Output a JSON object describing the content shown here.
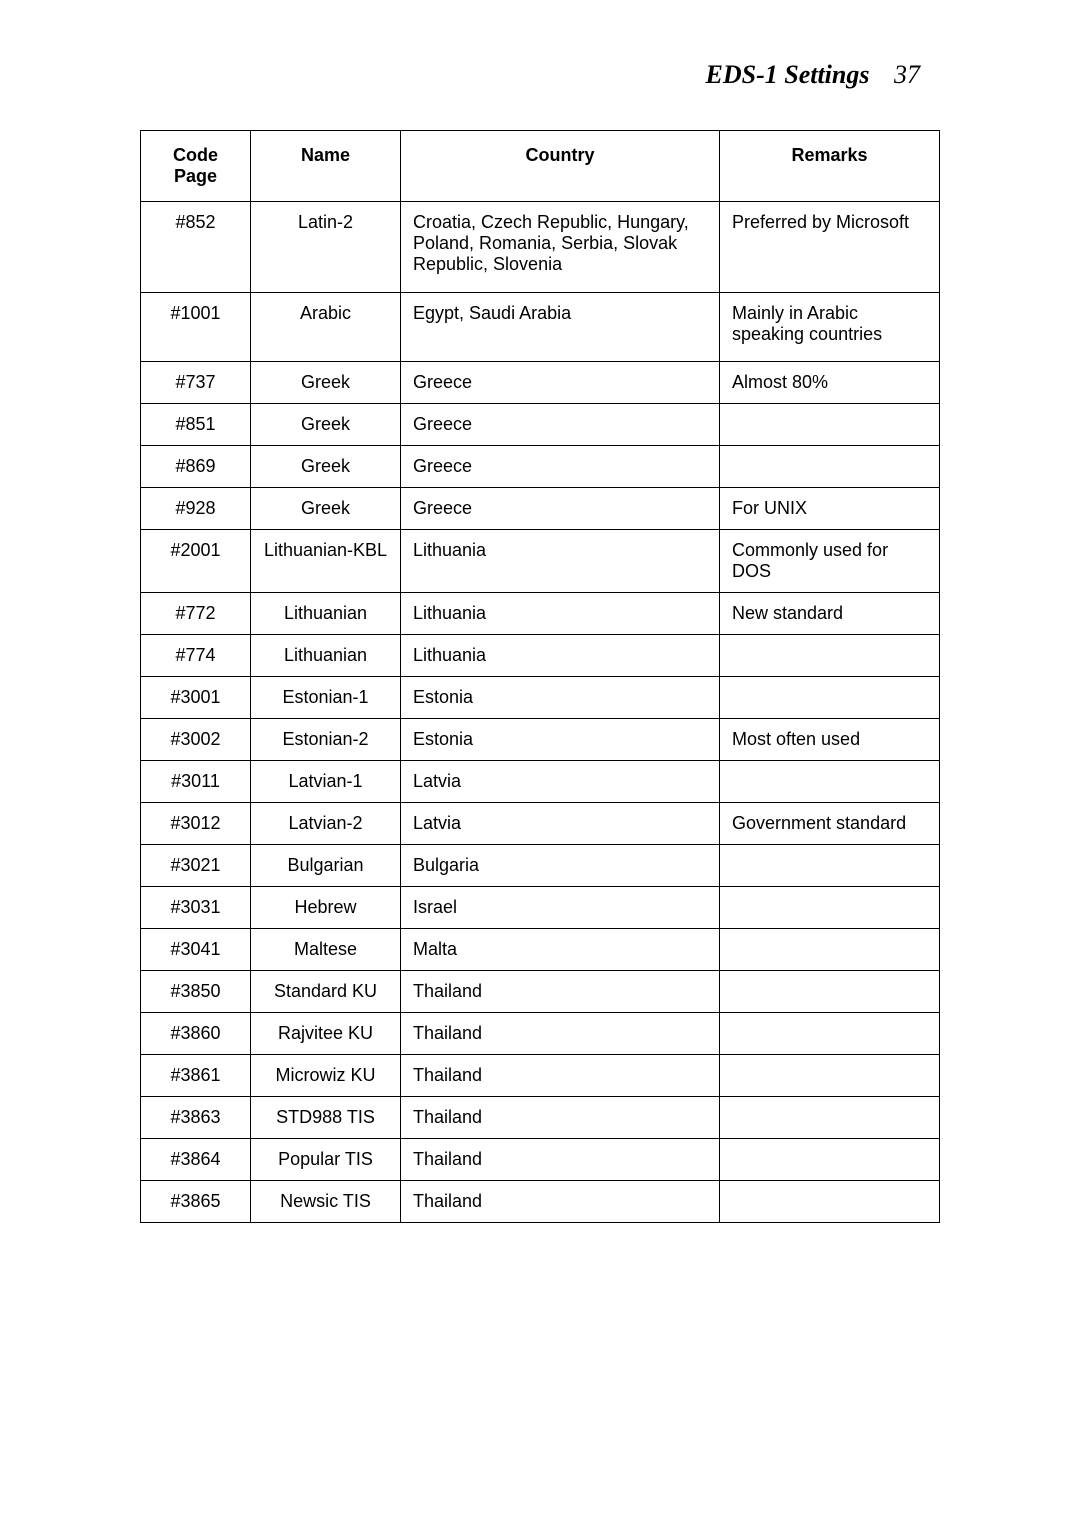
{
  "header": {
    "title": "EDS-1 Settings",
    "page_number": "37"
  },
  "table": {
    "columns": [
      "Code Page",
      "Name",
      "Country",
      "Remarks"
    ],
    "rows": [
      {
        "code": "#852",
        "name": "Latin-2",
        "country": "Croatia, Czech Republic, Hungary, Poland, Romania, Serbia, Slovak Republic, Slovenia",
        "remarks": "Preferred by Microsoft",
        "style": "tall"
      },
      {
        "code": "#1001",
        "name": "Arabic",
        "country": "Egypt, Saudi Arabia",
        "remarks": "Mainly in Arabic speaking countries",
        "style": "med"
      },
      {
        "code": "#737",
        "name": "Greek",
        "country": "Greece",
        "remarks": "Almost 80%"
      },
      {
        "code": "#851",
        "name": "Greek",
        "country": "Greece",
        "remarks": ""
      },
      {
        "code": "#869",
        "name": "Greek",
        "country": "Greece",
        "remarks": ""
      },
      {
        "code": "#928",
        "name": "Greek",
        "country": "Greece",
        "remarks": "For UNIX"
      },
      {
        "code": "#2001",
        "name": "Lithuanian-KBL",
        "country": "Lithuania",
        "remarks": "Commonly used for DOS"
      },
      {
        "code": "#772",
        "name": "Lithuanian",
        "country": "Lithuania",
        "remarks": "New standard"
      },
      {
        "code": "#774",
        "name": "Lithuanian",
        "country": "Lithuania",
        "remarks": ""
      },
      {
        "code": "#3001",
        "name": "Estonian-1",
        "country": "Estonia",
        "remarks": ""
      },
      {
        "code": "#3002",
        "name": "Estonian-2",
        "country": "Estonia",
        "remarks": "Most often used"
      },
      {
        "code": "#3011",
        "name": "Latvian-1",
        "country": "Latvia",
        "remarks": ""
      },
      {
        "code": "#3012",
        "name": "Latvian-2",
        "country": "Latvia",
        "remarks": "Government standard"
      },
      {
        "code": "#3021",
        "name": "Bulgarian",
        "country": "Bulgaria",
        "remarks": ""
      },
      {
        "code": "#3031",
        "name": "Hebrew",
        "country": "Israel",
        "remarks": ""
      },
      {
        "code": "#3041",
        "name": "Maltese",
        "country": "Malta",
        "remarks": ""
      },
      {
        "code": "#3850",
        "name": "Standard KU",
        "country": "Thailand",
        "remarks": ""
      },
      {
        "code": "#3860",
        "name": "Rajvitee KU",
        "country": "Thailand",
        "remarks": ""
      },
      {
        "code": "#3861",
        "name": "Microwiz KU",
        "country": "Thailand",
        "remarks": ""
      },
      {
        "code": "#3863",
        "name": "STD988 TIS",
        "country": "Thailand",
        "remarks": ""
      },
      {
        "code": "#3864",
        "name": "Popular TIS",
        "country": "Thailand",
        "remarks": ""
      },
      {
        "code": "#3865",
        "name": "Newsic TIS",
        "country": "Thailand",
        "remarks": ""
      }
    ]
  }
}
